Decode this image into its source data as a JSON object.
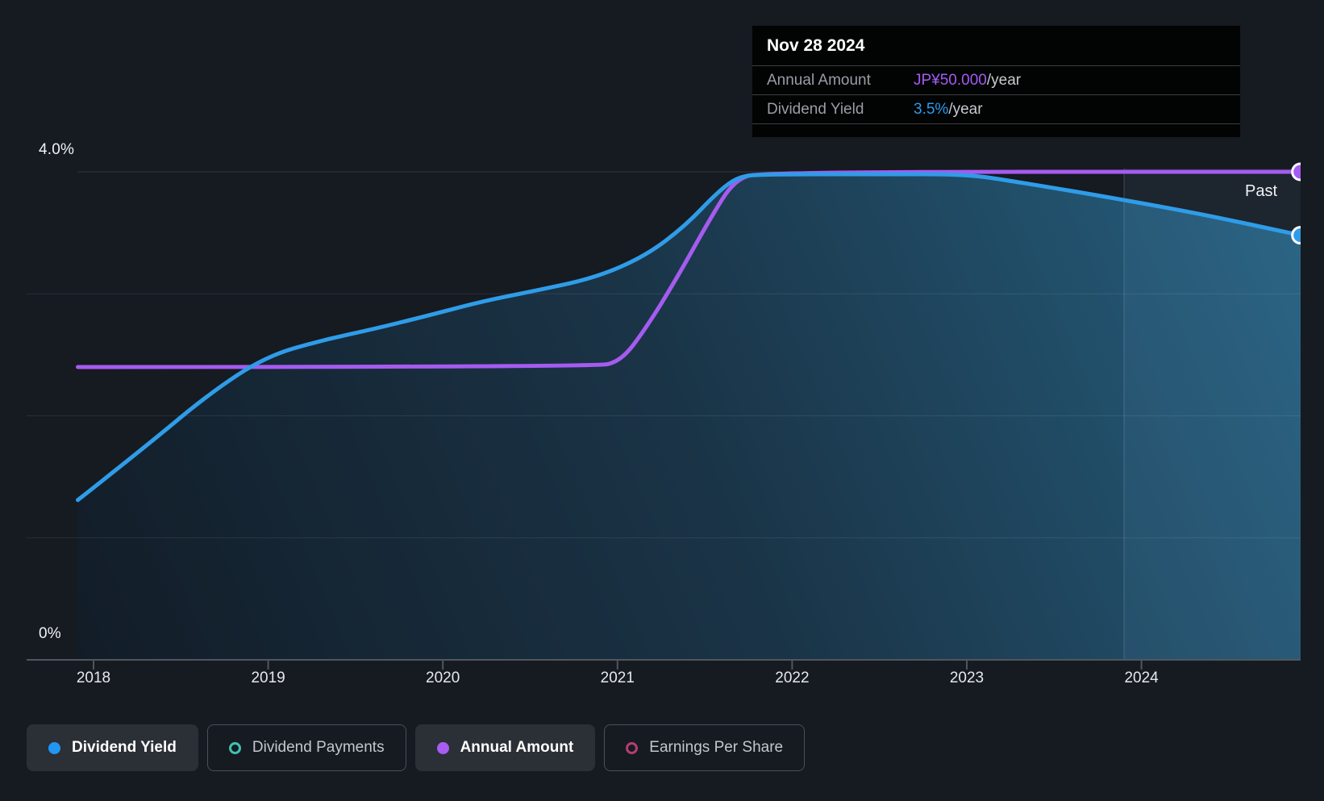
{
  "tooltip": {
    "date": "Nov 28 2024",
    "rows": [
      {
        "label": "Annual Amount",
        "value": "JP¥50.000",
        "suffix": "/year",
        "color": "#A45CF2"
      },
      {
        "label": "Dividend Yield",
        "value": "3.5%",
        "suffix": "/year",
        "color": "#2D9CEE"
      }
    ]
  },
  "axes": {
    "y_top_label": "4.0%",
    "y_bottom_label": "0%",
    "x_ticks": [
      "2018",
      "2019",
      "2020",
      "2021",
      "2022",
      "2023",
      "2024"
    ]
  },
  "past_label": "Past",
  "legend": [
    {
      "label": "Dividend Yield",
      "marker": "filled",
      "color": "#2196F3",
      "active": true
    },
    {
      "label": "Dividend Payments",
      "marker": "ring",
      "color": "#3FC1B2",
      "active": false
    },
    {
      "label": "Annual Amount",
      "marker": "filled",
      "color": "#A85CF0",
      "active": true
    },
    {
      "label": "Earnings Per Share",
      "marker": "ring",
      "color": "#B13F72",
      "active": false
    }
  ],
  "colors": {
    "background": "#161A21",
    "dividend_yield_line": "#2F9CE8",
    "annual_amount_line": "#A55BF0",
    "area_gradient_dark": "#121C27",
    "area_gradient_bright": "#266080",
    "tooltip_bg": "#020303",
    "axis": "#50565E"
  },
  "chart_data": {
    "type": "area",
    "title": "Dividend history (past)",
    "x_range": [
      2017.91,
      2024.91
    ],
    "grid": true,
    "legend_position": "bottom",
    "y_left": {
      "label": "Dividend Yield",
      "unit": "%",
      "range": [
        0,
        4.0
      ],
      "tick_labels": [
        "0%",
        "4.0%"
      ]
    },
    "y_right": {
      "label": "Annual Amount",
      "unit": "JP¥/year",
      "range": [
        0,
        50
      ]
    },
    "hover_point": {
      "date": "Nov 28 2024",
      "dividend_yield_pct": 3.5,
      "annual_amount_jpy": 50.0
    },
    "series": [
      {
        "name": "Dividend Yield",
        "axis": "left",
        "unit": "%",
        "points": [
          [
            2017.91,
            1.31
          ],
          [
            2018.3,
            1.75
          ],
          [
            2018.66,
            2.18
          ],
          [
            2018.99,
            2.49
          ],
          [
            2019.31,
            2.62
          ],
          [
            2019.63,
            2.72
          ],
          [
            2019.91,
            2.82
          ],
          [
            2020.23,
            2.94
          ],
          [
            2020.51,
            3.02
          ],
          [
            2020.87,
            3.13
          ],
          [
            2021.16,
            3.31
          ],
          [
            2021.39,
            3.56
          ],
          [
            2021.57,
            3.83
          ],
          [
            2021.69,
            3.96
          ],
          [
            2021.83,
            3.98
          ],
          [
            2022.54,
            3.98
          ],
          [
            2023.0,
            3.98
          ],
          [
            2023.28,
            3.92
          ],
          [
            2023.9,
            3.77
          ],
          [
            2024.39,
            3.64
          ],
          [
            2024.91,
            3.48
          ]
        ]
      },
      {
        "name": "Annual Amount",
        "axis": "right",
        "unit": "JP¥",
        "points": [
          [
            2017.91,
            30
          ],
          [
            2020.87,
            30
          ],
          [
            2021.02,
            30.6
          ],
          [
            2021.16,
            33.9
          ],
          [
            2021.34,
            39.1
          ],
          [
            2021.53,
            45.2
          ],
          [
            2021.67,
            49.2
          ],
          [
            2021.83,
            50
          ],
          [
            2024.91,
            50
          ]
        ]
      }
    ]
  }
}
